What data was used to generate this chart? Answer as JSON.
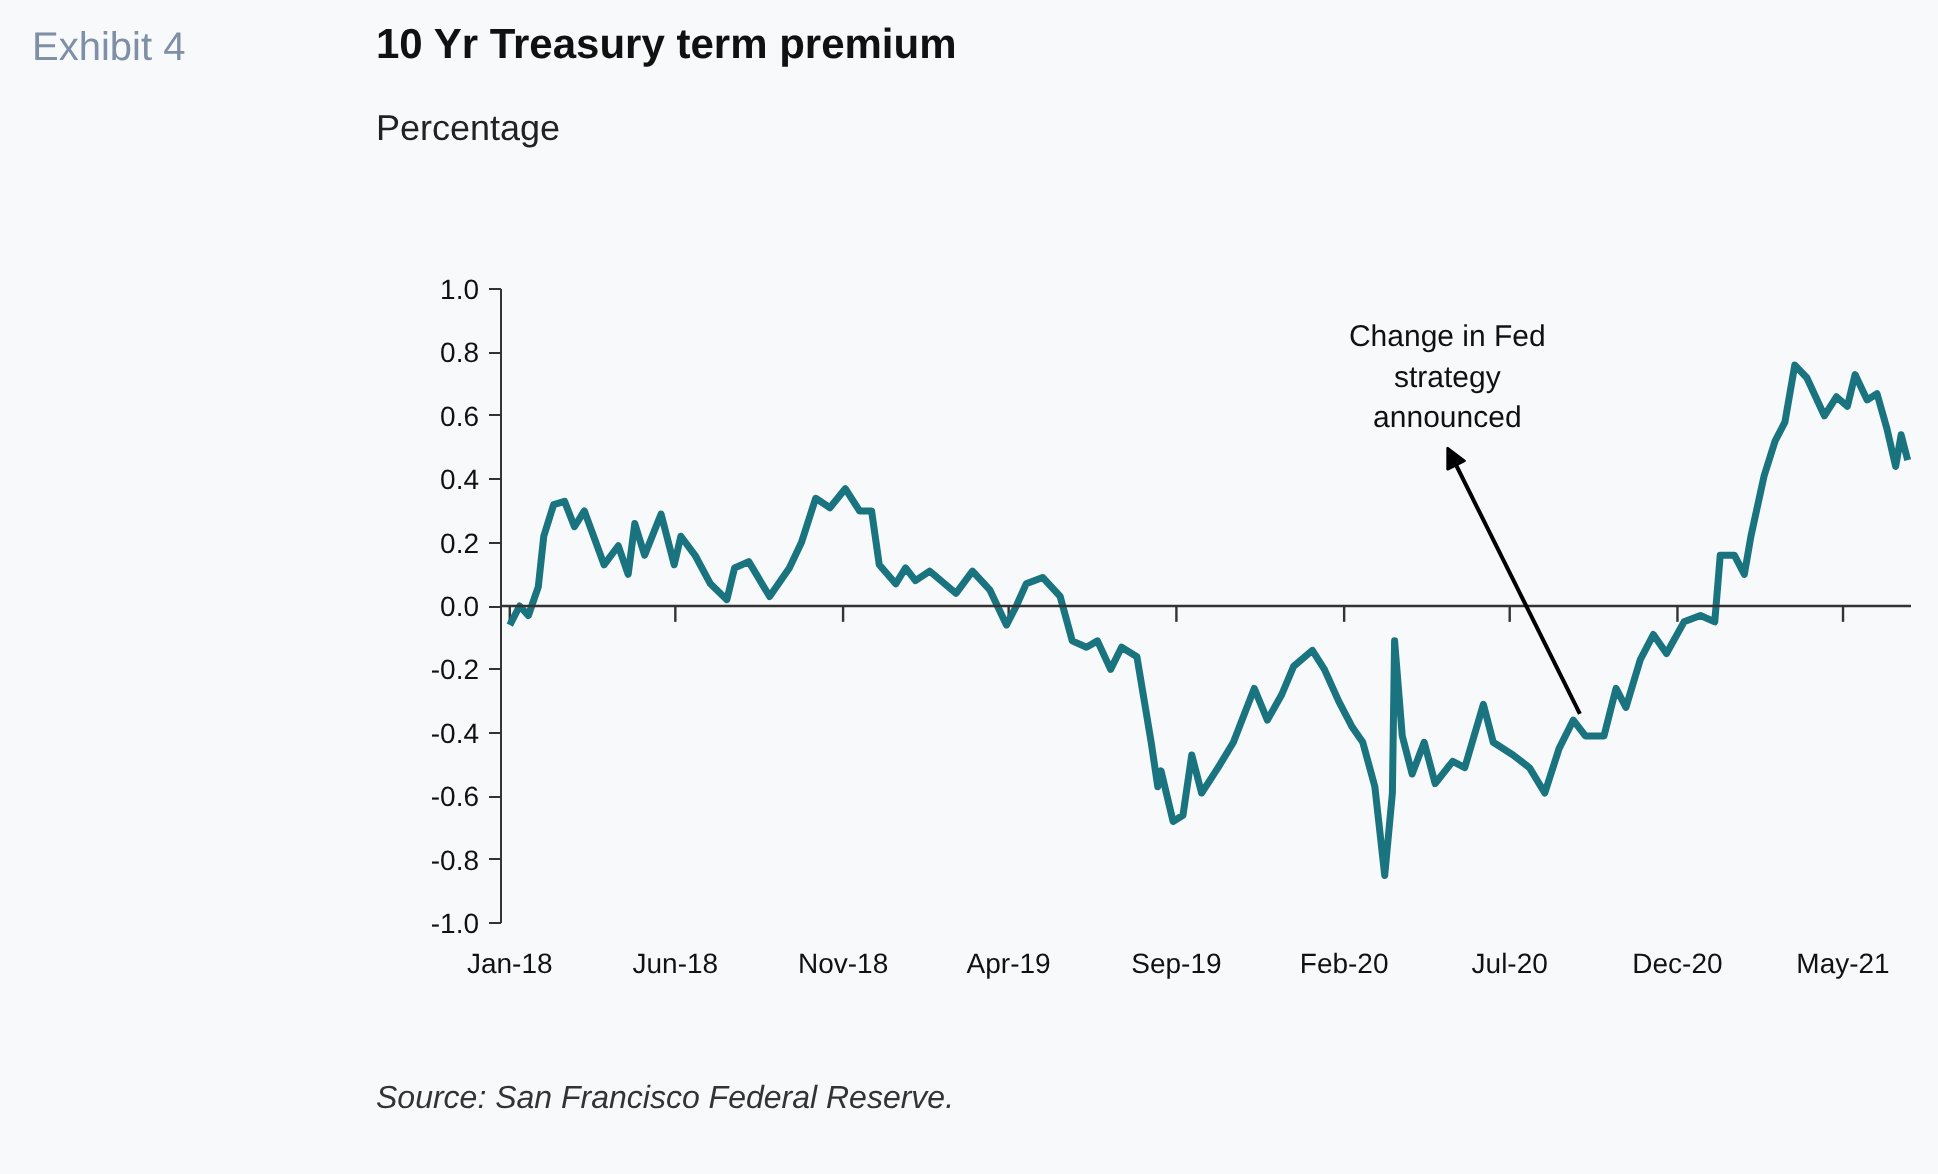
{
  "chart_data": {
    "type": "line",
    "title": "10 Yr Treasury term premium",
    "subtitle": "Percentage",
    "annotations": [
      "Exhibit 4",
      "Source: San Francisco Federal Reserve.",
      {
        "text": "Change in Fed strategy announced",
        "x": "2020-09-03",
        "y": -0.34
      }
    ],
    "series": [
      {
        "color": "#1a7480",
        "x": [
          "2018-01-01",
          "2018-01-10",
          "2018-01-18",
          "2018-01-27",
          "2018-02-01",
          "2018-02-10",
          "2018-02-20",
          "2018-03-01",
          "2018-03-10",
          "2018-03-28",
          "2018-04-10",
          "2018-04-19",
          "2018-04-25",
          "2018-05-04",
          "2018-05-19",
          "2018-05-31",
          "2018-06-06",
          "2018-06-19",
          "2018-07-03",
          "2018-07-18",
          "2018-07-25",
          "2018-08-07",
          "2018-08-26",
          "2018-09-13",
          "2018-09-24",
          "2018-10-07",
          "2018-10-20",
          "2018-11-03",
          "2018-11-16",
          "2018-11-27",
          "2018-12-04",
          "2018-12-19",
          "2018-12-28",
          "2019-01-06",
          "2019-01-19",
          "2019-02-12",
          "2019-02-27",
          "2019-03-15",
          "2019-03-30",
          "2019-04-08",
          "2019-04-17",
          "2019-05-02",
          "2019-05-18",
          "2019-05-29",
          "2019-06-11",
          "2019-06-21",
          "2019-07-03",
          "2019-07-13",
          "2019-07-27",
          "2019-08-09",
          "2019-08-15",
          "2019-08-18",
          "2019-08-29",
          "2019-09-07",
          "2019-09-15",
          "2019-09-24",
          "2019-10-09",
          "2019-10-23",
          "2019-11-11",
          "2019-11-23",
          "2019-12-06",
          "2019-12-17",
          "2020-01-03",
          "2020-01-14",
          "2020-01-27",
          "2020-02-08",
          "2020-02-18",
          "2020-02-29",
          "2020-03-09",
          "2020-03-16",
          "2020-03-18",
          "2020-03-25",
          "2020-04-03",
          "2020-04-14",
          "2020-04-24",
          "2020-05-10",
          "2020-05-21",
          "2020-06-07",
          "2020-06-16",
          "2020-07-04",
          "2020-07-19",
          "2020-08-02",
          "2020-08-15",
          "2020-08-28",
          "2020-09-08",
          "2020-09-25",
          "2020-10-06",
          "2020-10-15",
          "2020-10-28",
          "2020-11-09",
          "2020-11-21",
          "2020-12-07",
          "2020-12-22",
          "2021-01-04",
          "2021-01-09",
          "2021-01-22",
          "2021-01-31",
          "2021-02-06",
          "2021-02-18",
          "2021-02-28",
          "2021-03-09",
          "2021-03-18",
          "2021-03-29",
          "2021-04-14",
          "2021-04-25",
          "2021-05-05",
          "2021-05-12",
          "2021-05-23",
          "2021-06-01",
          "2021-06-10",
          "2021-06-18",
          "2021-06-23",
          "2021-06-29"
        ],
        "values": [
          -0.06,
          0.0,
          -0.03,
          0.06,
          0.22,
          0.32,
          0.33,
          0.25,
          0.3,
          0.13,
          0.19,
          0.1,
          0.26,
          0.16,
          0.29,
          0.13,
          0.22,
          0.16,
          0.07,
          0.02,
          0.12,
          0.14,
          0.03,
          0.12,
          0.2,
          0.34,
          0.31,
          0.37,
          0.3,
          0.3,
          0.13,
          0.07,
          0.12,
          0.08,
          0.11,
          0.04,
          0.11,
          0.05,
          -0.06,
          0.0,
          0.07,
          0.09,
          0.03,
          -0.11,
          -0.13,
          -0.11,
          -0.2,
          -0.13,
          -0.16,
          -0.43,
          -0.57,
          -0.52,
          -0.68,
          -0.66,
          -0.47,
          -0.59,
          -0.51,
          -0.43,
          -0.26,
          -0.36,
          -0.28,
          -0.19,
          -0.14,
          -0.2,
          -0.3,
          -0.38,
          -0.43,
          -0.57,
          -0.85,
          -0.59,
          -0.11,
          -0.41,
          -0.53,
          -0.43,
          -0.56,
          -0.49,
          -0.51,
          -0.31,
          -0.43,
          -0.47,
          -0.51,
          -0.59,
          -0.45,
          -0.36,
          -0.41,
          -0.41,
          -0.26,
          -0.32,
          -0.17,
          -0.09,
          -0.15,
          -0.05,
          -0.03,
          -0.05,
          0.16,
          0.16,
          0.1,
          0.22,
          0.41,
          0.52,
          0.58,
          0.76,
          0.72,
          0.6,
          0.66,
          0.63,
          0.73,
          0.65,
          0.67,
          0.56,
          0.44,
          0.54,
          0.46
        ]
      }
    ],
    "xlim": [
      "2017-12-24",
      "2021-07-02"
    ],
    "xticks": [
      {
        "value": "2018-01-01",
        "label": "Jan-18"
      },
      {
        "value": "2018-06-01",
        "label": "Jun-18"
      },
      {
        "value": "2018-11-01",
        "label": "Nov-18"
      },
      {
        "value": "2019-04-01",
        "label": "Apr-19"
      },
      {
        "value": "2019-09-01",
        "label": "Sep-19"
      },
      {
        "value": "2020-02-01",
        "label": "Feb-20"
      },
      {
        "value": "2020-07-01",
        "label": "Jul-20"
      },
      {
        "value": "2020-12-01",
        "label": "Dec-20"
      },
      {
        "value": "2021-05-01",
        "label": "May-21"
      }
    ],
    "ylim": [
      -1.0,
      1.0
    ],
    "yticks": [
      {
        "value": -1.0,
        "label": "-1.0"
      },
      {
        "value": -0.8,
        "label": "-0.8"
      },
      {
        "value": -0.6,
        "label": "-0.6"
      },
      {
        "value": -0.4,
        "label": "-0.4"
      },
      {
        "value": -0.2,
        "label": "-0.2"
      },
      {
        "value": 0.0,
        "label": "0.0"
      },
      {
        "value": 0.2,
        "label": "0.2"
      },
      {
        "value": 0.4,
        "label": "0.4"
      },
      {
        "value": 0.6,
        "label": "0.6"
      },
      {
        "value": 0.8,
        "label": "0.8"
      },
      {
        "value": 1.0,
        "label": "1.0"
      }
    ],
    "marker": "none",
    "line_style": "solid"
  }
}
